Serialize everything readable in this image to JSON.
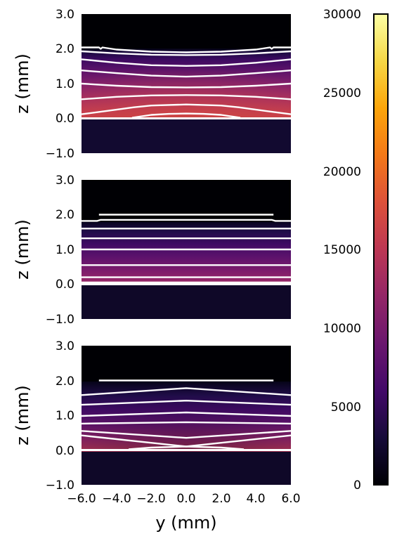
{
  "chart_data": [
    {
      "type": "heatmap",
      "panel": "top",
      "xlabel": "",
      "ylabel": "z (mm)",
      "xlim": [
        -6.0,
        6.0
      ],
      "ylim": [
        -1.0,
        3.0
      ],
      "yticks": [
        "3.0",
        "2.0",
        "1.0",
        "0.0",
        "−1.0"
      ],
      "contours": [
        {
          "ys": [
            -6,
            -5,
            -4.9,
            -4.8,
            -4,
            -2,
            0,
            2,
            4,
            4.8,
            4.9,
            5,
            6
          ],
          "zs": [
            2.04,
            2.04,
            2.0,
            2.04,
            1.98,
            1.92,
            1.9,
            1.92,
            1.98,
            2.04,
            2.0,
            2.04,
            2.04
          ]
        },
        {
          "ys": [
            -6,
            -4,
            -2,
            0,
            2,
            4,
            6
          ],
          "zs": [
            1.93,
            1.87,
            1.83,
            1.82,
            1.83,
            1.87,
            1.93
          ]
        },
        {
          "ys": [
            -6,
            -4,
            -2,
            0,
            2,
            4,
            6
          ],
          "zs": [
            1.7,
            1.6,
            1.53,
            1.51,
            1.53,
            1.6,
            1.7
          ]
        },
        {
          "ys": [
            -6,
            -4,
            -2,
            0,
            2,
            4,
            6
          ],
          "zs": [
            1.38,
            1.3,
            1.23,
            1.2,
            1.23,
            1.3,
            1.38
          ]
        },
        {
          "ys": [
            -6,
            -4,
            -2,
            0,
            2,
            4,
            6
          ],
          "zs": [
            1.0,
            0.94,
            0.9,
            0.89,
            0.9,
            0.94,
            1.0
          ]
        },
        {
          "ys": [
            -6,
            -4,
            -2,
            0,
            2,
            4,
            6
          ],
          "zs": [
            0.55,
            0.62,
            0.66,
            0.67,
            0.66,
            0.62,
            0.55
          ]
        },
        {
          "ys": [
            -6,
            -4,
            -3,
            -2,
            0,
            2,
            3,
            4,
            6
          ],
          "zs": [
            0.12,
            0.25,
            0.32,
            0.37,
            0.4,
            0.37,
            0.32,
            0.25,
            0.12
          ]
        },
        {
          "ys": [
            -3.1,
            -2,
            -1,
            0,
            1,
            2,
            3.1
          ],
          "zs": [
            0.02,
            0.1,
            0.13,
            0.14,
            0.13,
            0.1,
            0.02
          ]
        }
      ]
    },
    {
      "type": "heatmap",
      "panel": "middle",
      "xlabel": "",
      "ylabel": "z (mm)",
      "xlim": [
        -6.0,
        6.0
      ],
      "ylim": [
        -1.0,
        3.0
      ],
      "yticks": [
        "3.0",
        "2.0",
        "1.0",
        "0.0",
        "−1.0"
      ],
      "contours": [
        {
          "ys": [
            -5,
            5
          ],
          "zs": [
            2.0,
            2.0
          ]
        },
        {
          "ys": [
            -6,
            -5.1,
            -4.9,
            4.9,
            5.1,
            6
          ],
          "zs": [
            1.82,
            1.82,
            1.85,
            1.85,
            1.82,
            1.82
          ]
        },
        {
          "ys": [
            -6,
            6
          ],
          "zs": [
            1.6,
            1.6
          ]
        },
        {
          "ys": [
            -6,
            6
          ],
          "zs": [
            1.32,
            1.32
          ]
        },
        {
          "ys": [
            -6,
            6
          ],
          "zs": [
            1.0,
            1.0
          ]
        },
        {
          "ys": [
            -6,
            6
          ],
          "zs": [
            0.55,
            0.55
          ]
        },
        {
          "ys": [
            -6,
            6
          ],
          "zs": [
            0.2,
            0.2
          ]
        },
        {
          "ys": [
            -6,
            6
          ],
          "zs": [
            0.05,
            0.05
          ]
        }
      ]
    },
    {
      "type": "heatmap",
      "panel": "bottom",
      "xlabel": "y (mm)",
      "ylabel": "z (mm)",
      "xlim": [
        -6.0,
        6.0
      ],
      "ylim": [
        -1.0,
        3.0
      ],
      "xticks": [
        "−6.0",
        "−4.0",
        "−2.0",
        "0.0",
        "2.0",
        "4.0",
        "6.0"
      ],
      "yticks": [
        "3.0",
        "2.0",
        "1.0",
        "0.0",
        "−1.0"
      ],
      "contours": [
        {
          "ys": [
            -5,
            5
          ],
          "zs": [
            2.0,
            2.0
          ]
        },
        {
          "ys": [
            -6,
            0,
            6
          ],
          "zs": [
            1.58,
            1.78,
            1.58
          ]
        },
        {
          "ys": [
            -6,
            0,
            6
          ],
          "zs": [
            1.3,
            1.42,
            1.3
          ]
        },
        {
          "ys": [
            -6,
            0,
            6
          ],
          "zs": [
            0.98,
            1.08,
            0.98
          ]
        },
        {
          "ys": [
            -6,
            0,
            6
          ],
          "zs": [
            0.76,
            0.8,
            0.76
          ]
        },
        {
          "ys": [
            -6,
            0,
            6
          ],
          "zs": [
            0.55,
            0.35,
            0.55
          ]
        },
        {
          "ys": [
            -6,
            0,
            6
          ],
          "zs": [
            0.42,
            0.1,
            0.42
          ]
        },
        {
          "ys": [
            -3.3,
            -2,
            0,
            2,
            3.3
          ],
          "zs": [
            0.02,
            0.07,
            0.1,
            0.07,
            0.02
          ]
        }
      ]
    }
  ],
  "colorbar": {
    "colormap": "inferno",
    "range": [
      0,
      30000
    ],
    "ticks": [
      "30000",
      "25000",
      "20000",
      "15000",
      "10000",
      "5000",
      "0"
    ]
  }
}
